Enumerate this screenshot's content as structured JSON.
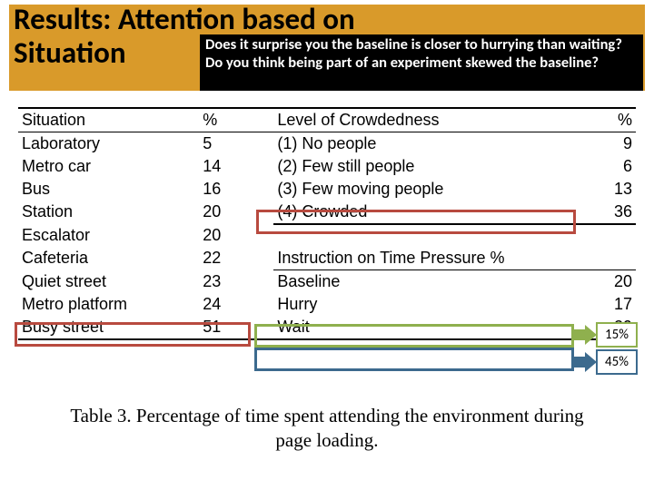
{
  "title": "Results: Attention based on\nSituation",
  "question": "Does it surprise you the baseline is closer to hurrying than waiting? Do you think being part of an experiment skewed the baseline?",
  "table": {
    "headers": {
      "sit": "Situation",
      "sitpct": "%",
      "lvl": "Level of Crowdedness",
      "lvlpct": "%"
    },
    "situations": [
      {
        "name": "Laboratory",
        "pct": "5"
      },
      {
        "name": "Metro car",
        "pct": "14"
      },
      {
        "name": "Bus",
        "pct": "16"
      },
      {
        "name": "Station",
        "pct": "20"
      },
      {
        "name": "Escalator",
        "pct": "20"
      },
      {
        "name": "Cafeteria",
        "pct": "22"
      },
      {
        "name": "Quiet street",
        "pct": "23"
      },
      {
        "name": "Metro platform",
        "pct": "24"
      },
      {
        "name": "Busy street",
        "pct": "51"
      }
    ],
    "crowdedness": [
      {
        "name": "(1) No people",
        "pct": "9"
      },
      {
        "name": "(2) Few still people",
        "pct": "6"
      },
      {
        "name": "(3) Few moving people",
        "pct": "13"
      },
      {
        "name": "(4) Crowded",
        "pct": "36"
      }
    ],
    "timepressure_header": "Instruction on Time Pressure %",
    "timepressure": [
      {
        "name": "Baseline",
        "pct": "20"
      },
      {
        "name": "Hurry",
        "pct": "17"
      },
      {
        "name": "Wait",
        "pct": "29"
      }
    ]
  },
  "caption": "Table 3. Percentage of time spent attending the environment during page loading.",
  "badges": {
    "green": "15%",
    "blue": "45%"
  },
  "colors": {
    "title_bg": "#d99a2a",
    "question_bg": "#000000",
    "highlight_red": "#b84a3f",
    "highlight_green": "#8fb04e",
    "highlight_blue": "#3c6a8e"
  }
}
